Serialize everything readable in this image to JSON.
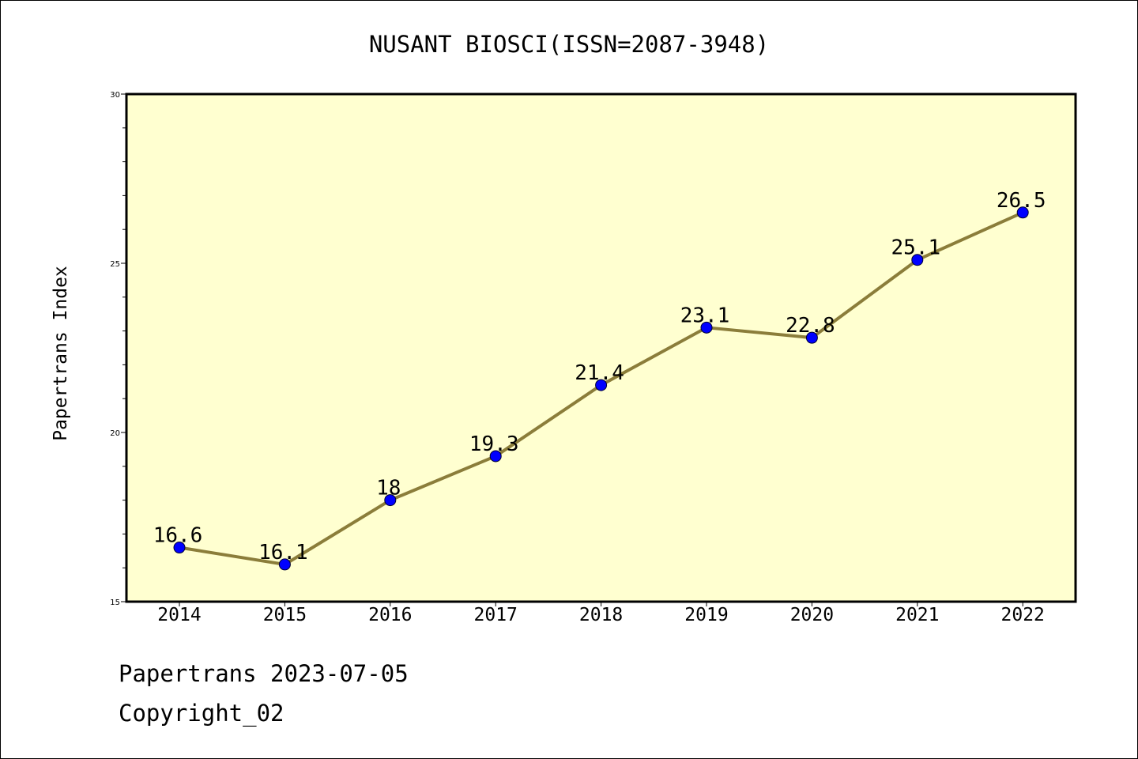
{
  "chart_data": {
    "type": "line",
    "title": "NUSANT BIOSCI(ISSN=2087-3948)",
    "xlabel": "",
    "ylabel": "Papertrans Index",
    "categories": [
      "2014",
      "2015",
      "2016",
      "2017",
      "2018",
      "2019",
      "2020",
      "2021",
      "2022"
    ],
    "series": [
      {
        "values": [
          16.6,
          16.1,
          18,
          19.3,
          21.4,
          23.1,
          22.8,
          25.1,
          26.5
        ]
      }
    ],
    "data_labels": [
      "16.6",
      "16.1",
      "18",
      "19.3",
      "21.4",
      "23.1",
      "22.8",
      "25.1",
      "26.5"
    ],
    "ylim": [
      15,
      30
    ],
    "yticks": [
      15,
      20,
      25,
      30
    ],
    "grid": false,
    "colors": {
      "plot_background": "#ffffd0",
      "line": "#8b7d3a",
      "marker": "#0000ff"
    }
  },
  "footer": {
    "line1": "Papertrans 2023-07-05",
    "line2": "Copyright_02"
  }
}
